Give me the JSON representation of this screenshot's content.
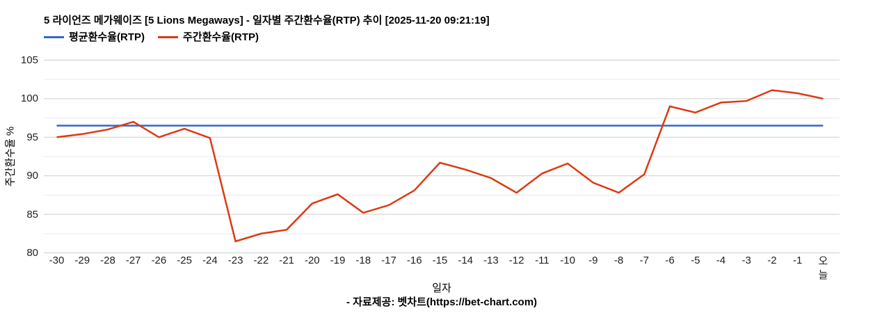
{
  "header": {
    "title": "5 라이언즈 메가웨이즈 [5 Lions Megaways] - 일자별 주간환수율(RTP) 추이 [2025-11-20 09:21:19]"
  },
  "legend": {
    "items": [
      {
        "label": "평균환수율(RTP)",
        "color": "#3366cc"
      },
      {
        "label": "주간환수율(RTP)",
        "color": "#dc3912"
      }
    ]
  },
  "footer": {
    "text": "- 자료제공: 벳차트(https://bet-chart.com)"
  },
  "chart_data": {
    "type": "line",
    "title": "5 라이언즈 메가웨이즈 [5 Lions Megaways] - 일자별 주간환수율(RTP) 추이 [2025-11-20 09:21:19]",
    "xlabel": "일자",
    "ylabel": "주간환수율 %",
    "ylim": [
      80,
      105
    ],
    "y_ticks": [
      105,
      100,
      95,
      90,
      85,
      80
    ],
    "y_minor_gridlines": [
      102.5,
      97.5,
      92.5,
      87.5,
      82.5
    ],
    "grid": true,
    "legend_position": "top-left",
    "categories": [
      "-30",
      "-29",
      "-28",
      "-27",
      "-26",
      "-25",
      "-24",
      "-23",
      "-22",
      "-21",
      "-20",
      "-19",
      "-18",
      "-17",
      "-16",
      "-15",
      "-14",
      "-13",
      "-12",
      "-11",
      "-10",
      "-9",
      "-8",
      "-7",
      "-6",
      "-5",
      "-4",
      "-3",
      "-2",
      "-1",
      "오늘"
    ],
    "series": [
      {
        "name": "평균환수율(RTP)",
        "color": "#3366cc",
        "values": [
          96.5,
          96.5,
          96.5,
          96.5,
          96.5,
          96.5,
          96.5,
          96.5,
          96.5,
          96.5,
          96.5,
          96.5,
          96.5,
          96.5,
          96.5,
          96.5,
          96.5,
          96.5,
          96.5,
          96.5,
          96.5,
          96.5,
          96.5,
          96.5,
          96.5,
          96.5,
          96.5,
          96.5,
          96.5,
          96.5,
          96.5
        ]
      },
      {
        "name": "주간환수율(RTP)",
        "color": "#dc3912",
        "values": [
          95.0,
          95.4,
          96.0,
          97.0,
          95.0,
          96.1,
          94.9,
          81.5,
          82.5,
          83.0,
          86.4,
          87.6,
          85.2,
          86.2,
          88.1,
          91.7,
          90.8,
          89.7,
          87.8,
          90.3,
          91.6,
          89.1,
          87.8,
          90.2,
          99.0,
          98.2,
          99.5,
          99.7,
          101.1,
          100.7,
          100.0
        ]
      }
    ],
    "colors": {
      "major_gridline": "#cccccc",
      "minor_gridline": "#ebebeb",
      "tick_label": "#333333"
    },
    "layout_hints": {
      "last_x_label_vertical": true
    }
  }
}
